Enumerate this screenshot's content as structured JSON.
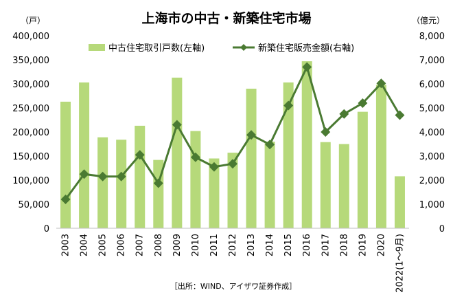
{
  "chart_data": {
    "type": "bar+line",
    "title": "上海市の中古・新築住宅市場",
    "left_unit": "（戸）",
    "right_unit": "（億元）",
    "categories": [
      "2003",
      "2004",
      "2005",
      "2006",
      "2007",
      "2008",
      "2009",
      "2010",
      "2011",
      "2012",
      "2013",
      "2014",
      "2015",
      "2016",
      "2017",
      "2018",
      "2019",
      "2020",
      "2022(1～9月)"
    ],
    "series": [
      {
        "name": "中古住宅取引戸数(左軸)",
        "type": "bar",
        "axis": "left",
        "color": "#b6d97a",
        "values": [
          263000,
          303000,
          189000,
          184000,
          213000,
          142000,
          313000,
          202000,
          145000,
          157000,
          290000,
          180000,
          303000,
          347000,
          179000,
          175000,
          242000,
          298000,
          108000
        ]
      },
      {
        "name": "新築住宅販売金額(右軸)",
        "type": "line",
        "axis": "right",
        "color": "#4a7a32",
        "values": [
          1200,
          2250,
          2150,
          2150,
          3050,
          1870,
          4300,
          2950,
          2550,
          2680,
          3880,
          3480,
          5100,
          6700,
          4000,
          4750,
          5200,
          6020,
          4700
        ]
      }
    ],
    "left_axis": {
      "min": 0,
      "max": 400000,
      "ticks": [
        "0",
        "50,000",
        "100,000",
        "150,000",
        "200,000",
        "250,000",
        "300,000",
        "350,000",
        "400,000"
      ]
    },
    "right_axis": {
      "min": 0,
      "max": 8000,
      "ticks": [
        "0",
        "1,000",
        "2,000",
        "3,000",
        "4,000",
        "5,000",
        "6,000",
        "7,000",
        "8,000"
      ]
    },
    "grid": false,
    "legend_position": "top"
  },
  "source": "［出所：WIND、アイザワ証券作成］"
}
